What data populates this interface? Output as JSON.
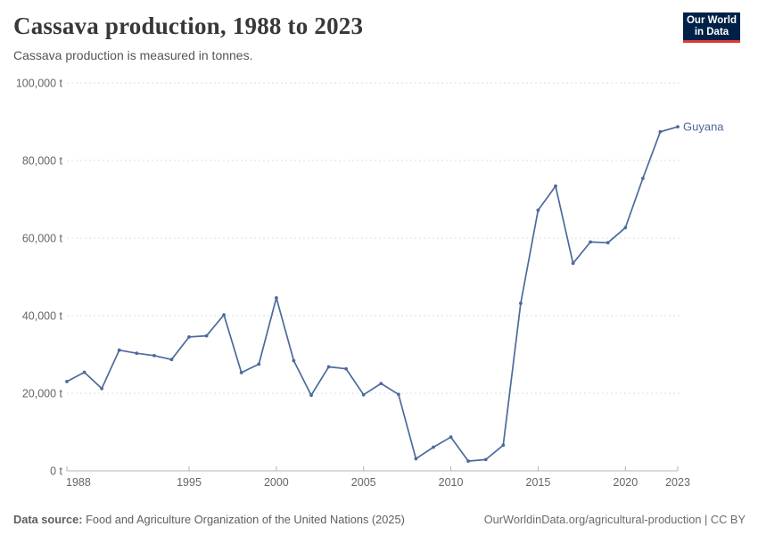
{
  "header": {
    "title": "Cassava production, 1988 to 2023",
    "subtitle": "Cassava production is measured in tonnes.",
    "logo": {
      "line1": "Our World",
      "line2": "in Data"
    }
  },
  "chart_data": {
    "type": "line",
    "title": "Cassava production, 1988 to 2023",
    "subtitle": "Cassava production is measured in tonnes.",
    "x": [
      1988,
      1989,
      1990,
      1991,
      1992,
      1993,
      1994,
      1995,
      1996,
      1997,
      1998,
      1999,
      2000,
      2001,
      2002,
      2003,
      2004,
      2005,
      2006,
      2007,
      2008,
      2009,
      2010,
      2011,
      2012,
      2013,
      2014,
      2015,
      2016,
      2017,
      2018,
      2019,
      2020,
      2021,
      2022,
      2023
    ],
    "series": [
      {
        "name": "Guyana",
        "color": "#4c6a9c",
        "values": [
          23000,
          25400,
          21200,
          31100,
          30300,
          29700,
          28700,
          34500,
          34800,
          40200,
          25300,
          27500,
          44600,
          28400,
          19500,
          26800,
          26300,
          19600,
          22500,
          19700,
          3100,
          6100,
          8700,
          2500,
          2900,
          6600,
          43200,
          67200,
          73400,
          53500,
          59000,
          58800,
          62700,
          75400,
          87400,
          88700
        ]
      }
    ],
    "xlim": [
      1988,
      2023
    ],
    "ylim": [
      0,
      100000
    ],
    "x_ticks": [
      1988,
      1995,
      2000,
      2005,
      2010,
      2015,
      2020,
      2023
    ],
    "y_ticks": [
      0,
      20000,
      40000,
      60000,
      80000,
      100000
    ],
    "y_tick_labels": [
      "0 t",
      "20,000 t",
      "40,000 t",
      "60,000 t",
      "80,000 t",
      "100,000 t"
    ],
    "grid": "horizontal dashed",
    "legend_position": "end-of-line label",
    "unit": "t"
  },
  "footer": {
    "source_label": "Data source:",
    "source_text": " Food and Agriculture Organization of the United Nations (2025)",
    "link_text": "OurWorldinData.org/agricultural-production | CC BY"
  },
  "colors": {
    "line": "#4c6a9c",
    "series_label": "#4c6a9c",
    "logo_bg": "#002147",
    "logo_accent": "#dc3a34",
    "grid": "#dcdcdc",
    "axis": "#b3b3b3",
    "tick_text": "#666666",
    "title_text": "#383838",
    "subtitle_text": "#555555",
    "footer_text": "#5e5e5e"
  }
}
